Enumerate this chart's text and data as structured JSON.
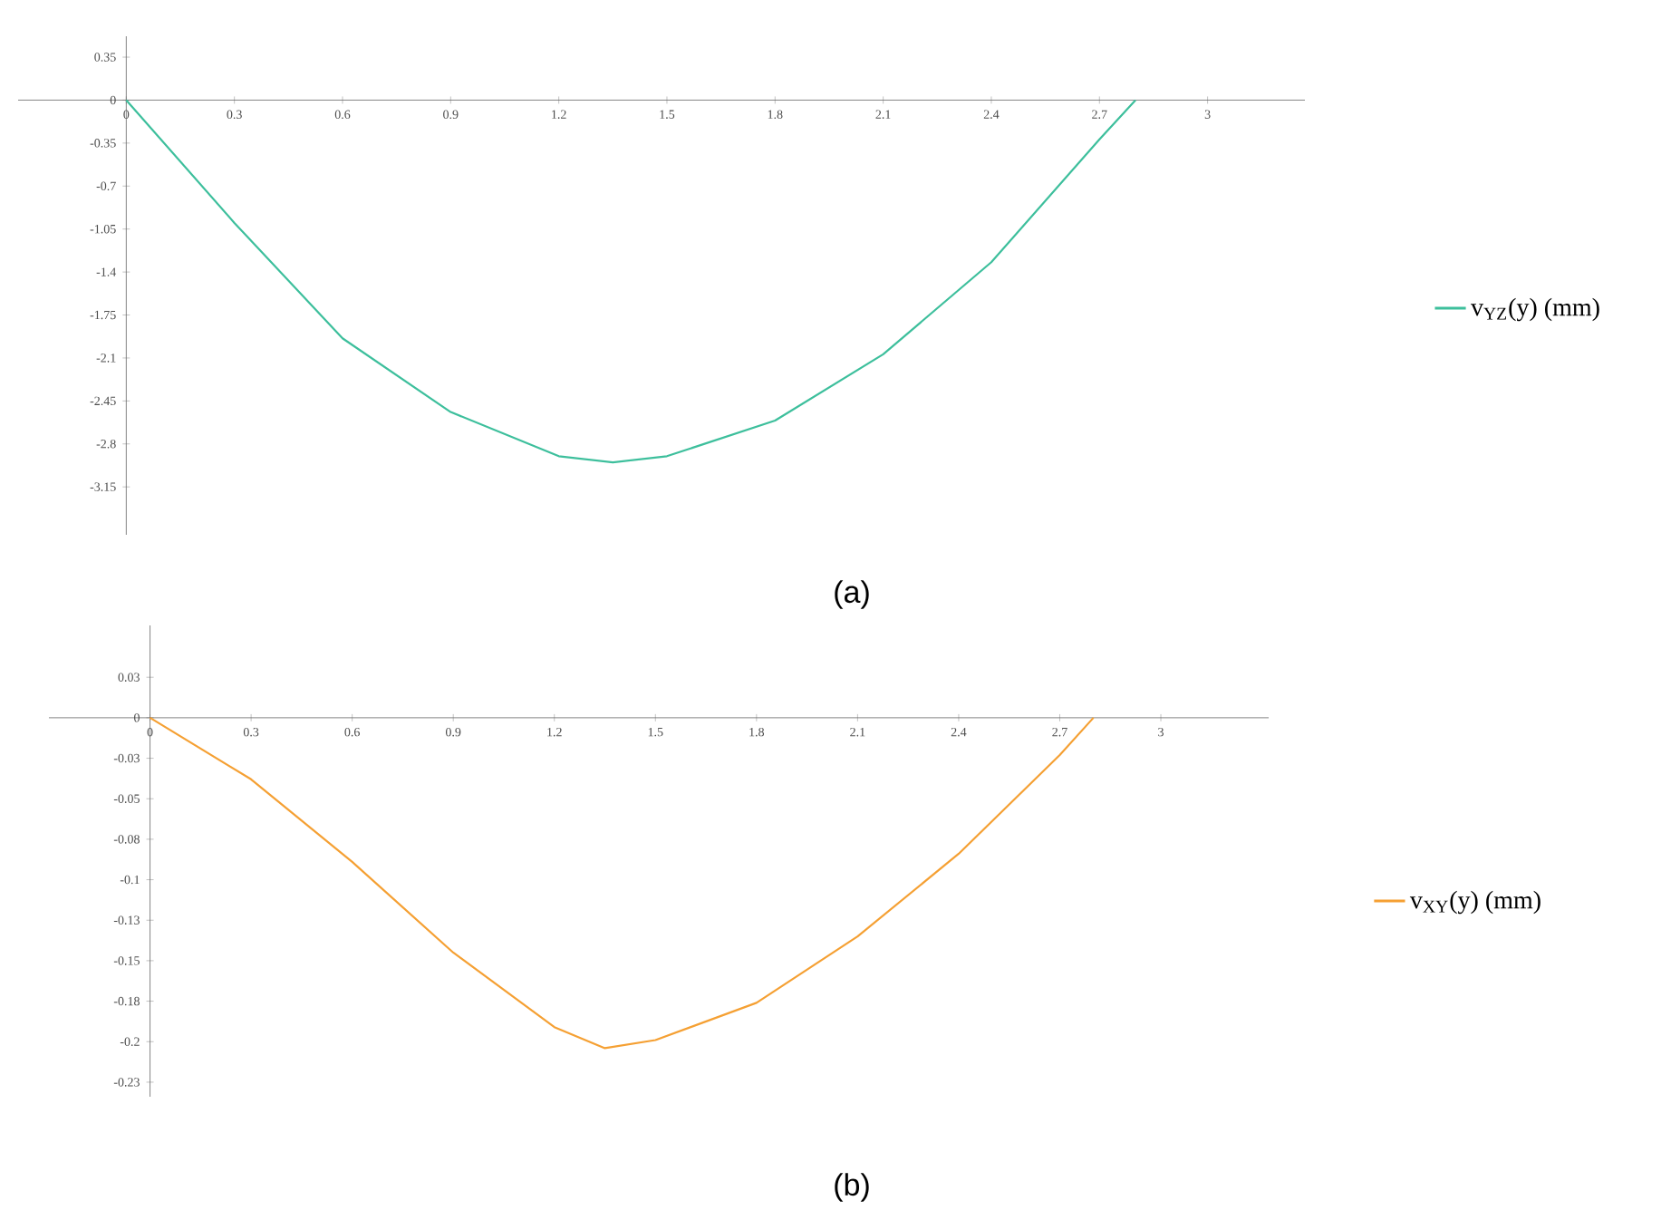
{
  "chart_data": [
    {
      "type": "line",
      "title": "(a)",
      "x": [
        0,
        0.3,
        0.6,
        0.9,
        1.2,
        1.35,
        1.5,
        1.8,
        2.1,
        2.4,
        2.7,
        2.8
      ],
      "series": [
        {
          "name": "v$_{YZ}$(y)  (mm)",
          "color": "#3dbf9c",
          "values": [
            0,
            -1.0,
            -1.94,
            -2.54,
            -2.9,
            -2.95,
            -2.9,
            -2.61,
            -2.07,
            -1.32,
            -0.32,
            0
          ]
        }
      ],
      "xlim": [
        -0.3,
        3.27
      ],
      "ylim": [
        -3.54,
        0.52
      ],
      "xticks": [
        0,
        0.3,
        0.6,
        0.9,
        1.2,
        1.5,
        1.8,
        2.1,
        2.4,
        2.7,
        3
      ],
      "yticks": [
        0.35,
        0,
        -0.35,
        -0.7,
        -1.05,
        -1.4,
        -1.75,
        -2.1,
        -2.45,
        -2.8,
        -3.15
      ],
      "legend": "right",
      "marker": "none",
      "line_style": "solid"
    },
    {
      "type": "line",
      "title": "(b)",
      "x": [
        0,
        0.3,
        0.6,
        0.9,
        1.2,
        1.35,
        1.5,
        1.8,
        2.1,
        2.4,
        2.7,
        2.8
      ],
      "series": [
        {
          "name": "v$_{XY}$(y)  (mm)",
          "color": "#f5a033",
          "values": [
            0,
            -0.038,
            -0.089,
            -0.145,
            -0.191,
            -0.204,
            -0.199,
            -0.176,
            -0.135,
            -0.084,
            -0.023,
            0
          ]
        }
      ],
      "xlim": [
        -0.3,
        3.32
      ],
      "ylim": [
        -0.234,
        0.057
      ],
      "xticks": [
        0,
        0.3,
        0.6,
        0.9,
        1.2,
        1.5,
        1.8,
        2.1,
        2.4,
        2.7,
        3
      ],
      "yticks": [
        {
          "value": 0.025,
          "label": "0.03"
        },
        0,
        {
          "value": -0.025,
          "label": "-0.03"
        },
        -0.05,
        {
          "value": -0.075,
          "label": "-0.08"
        },
        -0.1,
        {
          "value": -0.125,
          "label": "-0.13"
        },
        -0.15,
        {
          "value": -0.175,
          "label": "-0.18"
        },
        -0.2,
        {
          "value": -0.225,
          "label": "-0.23"
        }
      ],
      "legend": "right",
      "marker": "none",
      "line_style": "solid"
    }
  ]
}
